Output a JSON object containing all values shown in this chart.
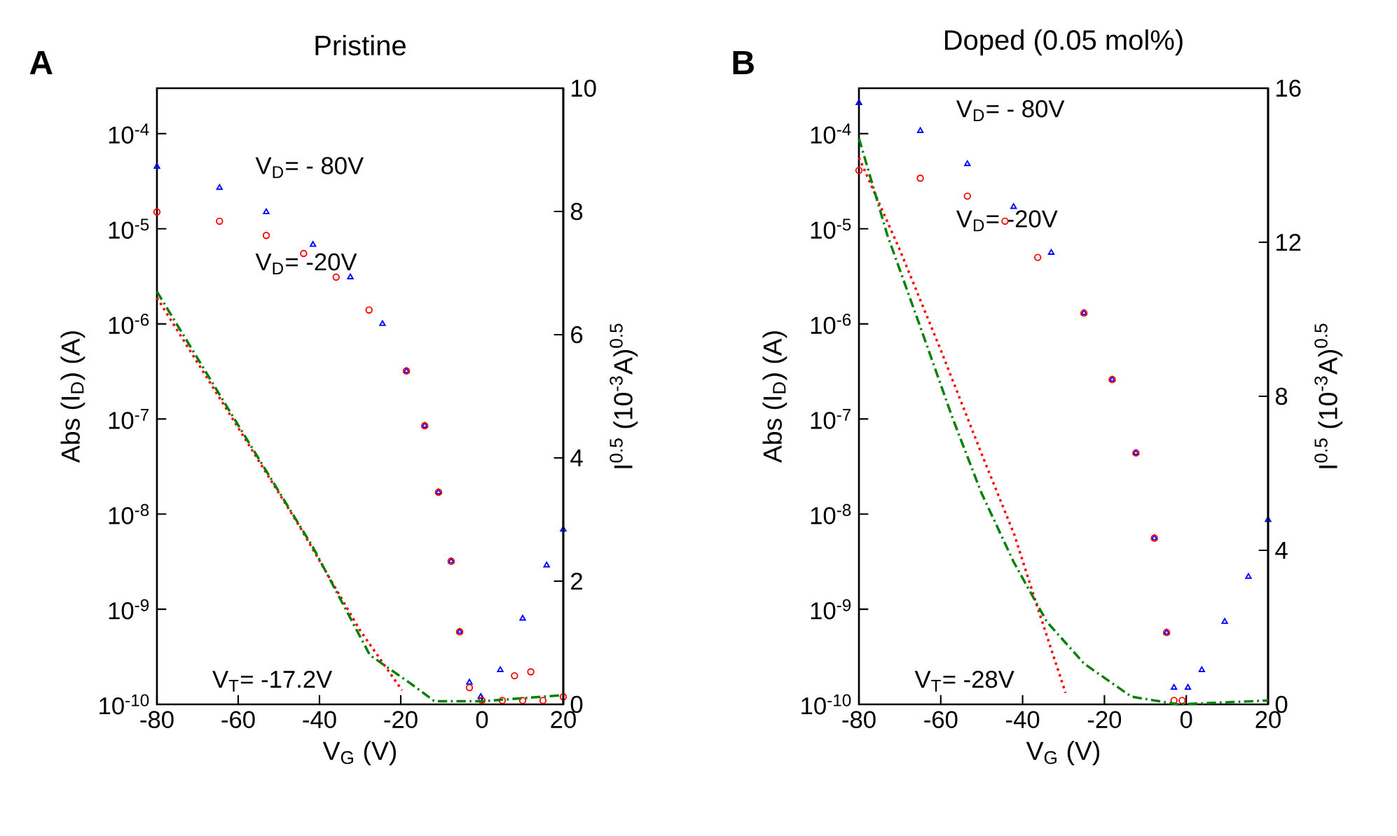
{
  "chart_data": [
    {
      "type": "scatter",
      "title": "Pristine",
      "xlabel": "V$_{G}$ (V)",
      "ylabel": "Abs (I$_{D}$) (A)",
      "y2label": "I$^{0.5}$ (10$^{-3}$A)$^{0.5}$",
      "annotations": [
        "A",
        "V$_{T}$= -17.2V"
      ],
      "log": "y",
      "xlim": [
        -80,
        20
      ],
      "xticks": [
        -80,
        -60,
        -40,
        -20,
        0,
        20
      ],
      "ylim": [
        1e-10,
        0.0003
      ],
      "yticks": [
        {
          "value": 1e-10,
          "label": "10$^{-10}$"
        },
        {
          "value": 1e-09,
          "label": "10$^{-9}$"
        },
        {
          "value": 1e-08,
          "label": "10$^{-8}$"
        },
        {
          "value": 1e-07,
          "label": "10$^{-7}$"
        },
        {
          "value": 1e-06,
          "label": "10$^{-6}$"
        },
        {
          "value": 1e-05,
          "label": "10$^{-5}$"
        },
        {
          "value": 0.0001,
          "label": "10$^{-4}$"
        }
      ],
      "y2lim": [
        0,
        10
      ],
      "y2ticks": [
        0,
        2,
        4,
        6,
        8,
        10
      ],
      "series": [
        {
          "name": "V$_{D}$= - 80V",
          "marker": "triangle",
          "color": "#0000ff",
          "x": [
            -80,
            -64.6,
            -53.1,
            -41.6,
            -32.4,
            -24.5,
            -18.6,
            -14.1,
            -10.7,
            -7.6,
            -5.5,
            -3.1,
            -0.3,
            4.5,
            10,
            15.9,
            20
          ],
          "values": [
            4.5e-05,
            2.7e-05,
            1.5e-05,
            6.8e-06,
            3.1e-06,
            1e-06,
            3.2e-07,
            8.5e-08,
            1.7e-08,
            3.2e-09,
            5.8e-10,
            1.7e-10,
            1.2e-10,
            2.3e-10,
            8e-10,
            2.9e-09,
            6.9e-09
          ]
        },
        {
          "name": "V$_{D}$= -20V",
          "marker": "circle",
          "color": "#ff0000",
          "x": [
            -80,
            -64.6,
            -53.1,
            -43.9,
            -35.9,
            -27.8,
            -18.6,
            -14.1,
            -10.7,
            -7.6,
            -5.5,
            -3.1,
            0,
            5,
            8,
            10,
            12,
            15,
            20
          ],
          "values": [
            1.5e-05,
            1.2e-05,
            8.5e-06,
            5.5e-06,
            3.1e-06,
            1.4e-06,
            3.2e-07,
            8.5e-08,
            1.7e-08,
            3.2e-09,
            5.8e-10,
            1.5e-10,
            1.1e-10,
            1.1e-10,
            2e-10,
            1.1e-10,
            2.2e-10,
            1.1e-10,
            1.2e-10
          ]
        },
        {
          "type": "line",
          "axis": "y2",
          "marker": "none",
          "line_style": "dotted",
          "color": "#ff0000",
          "x": [
            -80,
            -62,
            -45,
            -30,
            -19.7
          ],
          "values": [
            6.6,
            4.7,
            2.9,
            1.2,
            0.23
          ]
        },
        {
          "type": "line",
          "axis": "y2",
          "marker": "none",
          "line_style": "dashed",
          "color": "#008000",
          "x": [
            -80,
            -61.1,
            -41.6,
            -27.6,
            -17.6,
            -11.7,
            0,
            20
          ],
          "values": [
            6.7,
            4.65,
            2.55,
            0.8,
            0.34,
            0.05,
            0.05,
            0.15
          ]
        }
      ]
    },
    {
      "type": "scatter",
      "title": "Doped (0.05 mol%)",
      "xlabel": "V$_{G}$ (V)",
      "ylabel": "Abs (I$_{D}$) (A)",
      "y2label": "I$^{0.5}$ (10$^{-3}$A)$^{0.5}$",
      "annotations": [
        "B",
        "V$_{T}$= -28V"
      ],
      "log": "y",
      "xlim": [
        -80,
        20
      ],
      "xticks": [
        -80,
        -60,
        -40,
        -20,
        0,
        20
      ],
      "ylim": [
        1e-10,
        0.0003
      ],
      "yticks": [
        {
          "value": 1e-10,
          "label": "10$^{-10}$"
        },
        {
          "value": 1e-09,
          "label": "10$^{-9}$"
        },
        {
          "value": 1e-08,
          "label": "10$^{-8}$"
        },
        {
          "value": 1e-07,
          "label": "10$^{-7}$"
        },
        {
          "value": 1e-06,
          "label": "10$^{-6}$"
        },
        {
          "value": 1e-05,
          "label": "10$^{-5}$"
        },
        {
          "value": 0.0001,
          "label": "10$^{-4}$"
        }
      ],
      "y2lim": [
        0,
        16
      ],
      "y2ticks": [
        0,
        4,
        8,
        12,
        16
      ],
      "series": [
        {
          "name": "V$_{D}$= - 80V",
          "marker": "triangle",
          "color": "#0000ff",
          "x": [
            -80,
            -65,
            -53.5,
            -42.2,
            -33,
            -25,
            -18.1,
            -12.3,
            -7.8,
            -4.8,
            -3,
            0.4,
            3.8,
            9.4,
            15.2,
            20
          ],
          "values": [
            0.00021,
            0.000107,
            4.8e-05,
            1.7e-05,
            5.6e-06,
            1.3e-06,
            2.6e-07,
            4.4e-08,
            5.6e-09,
            5.7e-10,
            1.5e-10,
            1.5e-10,
            2.3e-10,
            7.4e-10,
            2.2e-09,
            8.7e-09
          ]
        },
        {
          "name": "V$_{D}$= -20V",
          "marker": "circle",
          "color": "#ff0000",
          "x": [
            -80,
            -65,
            -53.5,
            -44.3,
            -36.3,
            -25,
            -18.1,
            -12.3,
            -7.8,
            -4.8,
            -3,
            -1
          ],
          "values": [
            4.1e-05,
            3.4e-05,
            2.2e-05,
            1.2e-05,
            5e-06,
            1.3e-06,
            2.6e-07,
            4.4e-08,
            5.6e-09,
            5.7e-10,
            1.1e-10,
            1.1e-10
          ]
        },
        {
          "type": "line",
          "axis": "y2",
          "marker": "none",
          "line_style": "dotted",
          "color": "#ff0000",
          "x": [
            -80,
            -70,
            -60,
            -50,
            -42,
            -36,
            -29.5
          ],
          "values": [
            14.2,
            11.8,
            9.2,
            6.5,
            4.4,
            2.4,
            0.3
          ]
        },
        {
          "type": "line",
          "axis": "y2",
          "marker": "none",
          "line_style": "dashed",
          "color": "#008000",
          "x": [
            -80,
            -73.1,
            -65,
            -57,
            -50.1,
            -42.2,
            -34.1,
            -25,
            -13.4,
            -2,
            20
          ],
          "values": [
            14.7,
            12.2,
            9.8,
            7.4,
            5.5,
            3.7,
            2.15,
            1.06,
            0.2,
            0,
            0.1
          ]
        }
      ]
    }
  ]
}
